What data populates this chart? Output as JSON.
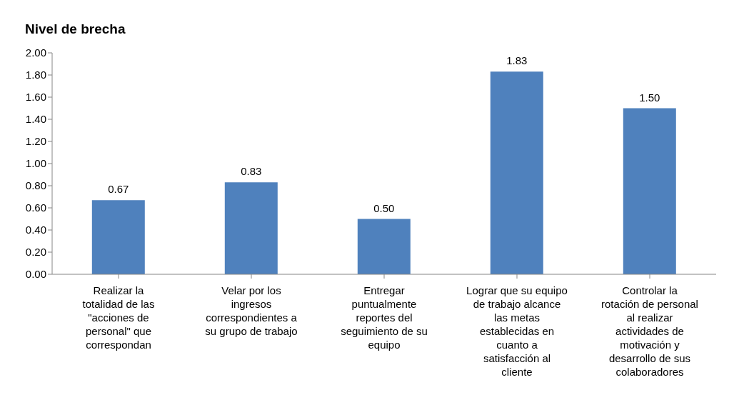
{
  "chart_data": {
    "type": "bar",
    "title": "Nivel de brecha",
    "categories": [
      "Realizar la totalidad de las \"acciones de personal\" que correspondan",
      "Velar por los ingresos correspondientes a su grupo de trabajo",
      "Entregar puntualmente reportes del seguimiento de su equipo",
      "Lograr que su equipo de trabajo alcance las metas establecidas en cuanto a satisfacción al cliente",
      "Controlar la rotación de personal al realizar actividades de motivación y desarrollo de sus colaboradores"
    ],
    "values": [
      0.67,
      0.83,
      0.5,
      1.83,
      1.5
    ],
    "value_labels": [
      "0.67",
      "0.83",
      "0.50",
      "1.83",
      "1.50"
    ],
    "color": "#4f81bd",
    "ylim": [
      0,
      2
    ],
    "yticks": [
      {
        "value": 0,
        "label": "0.00"
      },
      {
        "value": 0.2,
        "label": "0.20"
      },
      {
        "value": 0.4,
        "label": "0.40"
      },
      {
        "value": 0.6,
        "label": "0.60"
      },
      {
        "value": 0.8,
        "label": "0.80"
      },
      {
        "value": 1,
        "label": "1.00"
      },
      {
        "value": 1.2,
        "label": "1.20"
      },
      {
        "value": 1.4,
        "label": "1.40"
      },
      {
        "value": 1.6,
        "label": "1.60"
      },
      {
        "value": 1.8,
        "label": "1.80"
      },
      {
        "value": 2,
        "label": "2.00"
      }
    ],
    "grid": false,
    "legend": false
  }
}
